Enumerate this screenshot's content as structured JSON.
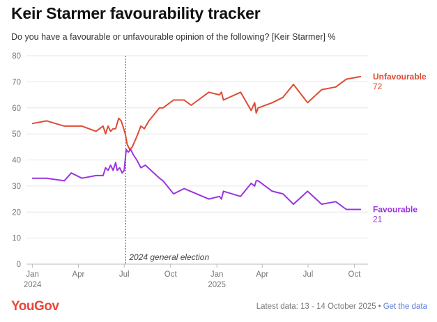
{
  "header": {
    "title": "Keir Starmer favourability tracker",
    "subtitle": "Do you have a favourable or unfavourable opinion of the following? [Keir Starmer] %"
  },
  "footer": {
    "logo": "YouGov",
    "latest": "Latest data: 13 - 14 October 2025",
    "separator": "•",
    "link": "Get the data"
  },
  "colors": {
    "unfavourable": "#e04a33",
    "favourable": "#9b34e0",
    "grid": "#e6e6e6",
    "ink": "#777777"
  },
  "chart_data": {
    "type": "line",
    "title": "Keir Starmer favourability tracker",
    "ylim": [
      0,
      80
    ],
    "yticks": [
      0,
      10,
      20,
      30,
      40,
      50,
      60,
      70,
      80
    ],
    "xlim": [
      "2023-12-20",
      "2025-10-28"
    ],
    "grid": true,
    "legend": "end-of-line labels",
    "xticks": [
      {
        "date": "2024-01-01",
        "label": "Jan",
        "year": "2024"
      },
      {
        "date": "2024-04-01",
        "label": "Apr",
        "year": ""
      },
      {
        "date": "2024-07-01",
        "label": "Jul",
        "year": ""
      },
      {
        "date": "2024-10-01",
        "label": "Oct",
        "year": ""
      },
      {
        "date": "2025-01-01",
        "label": "Jan",
        "year": "2025"
      },
      {
        "date": "2025-04-01",
        "label": "Apr",
        "year": ""
      },
      {
        "date": "2025-07-01",
        "label": "Jul",
        "year": ""
      },
      {
        "date": "2025-10-01",
        "label": "Oct",
        "year": ""
      }
    ],
    "annotations": [
      {
        "date": "2024-07-04",
        "label": "2024 general election"
      }
    ],
    "series": [
      {
        "name": "Unfavourable",
        "end_value": "72",
        "points": [
          [
            "2024-01-01",
            54
          ],
          [
            "2024-01-29",
            55
          ],
          [
            "2024-03-04",
            53
          ],
          [
            "2024-04-08",
            53
          ],
          [
            "2024-05-06",
            51
          ],
          [
            "2024-05-20",
            53
          ],
          [
            "2024-05-25",
            50
          ],
          [
            "2024-05-30",
            53
          ],
          [
            "2024-06-04",
            51
          ],
          [
            "2024-06-09",
            52
          ],
          [
            "2024-06-14",
            52
          ],
          [
            "2024-06-20",
            56
          ],
          [
            "2024-06-25",
            55
          ],
          [
            "2024-06-30",
            52
          ],
          [
            "2024-07-03",
            50
          ],
          [
            "2024-07-07",
            46
          ],
          [
            "2024-07-12",
            44
          ],
          [
            "2024-07-17",
            45
          ],
          [
            "2024-07-26",
            49
          ],
          [
            "2024-08-03",
            53
          ],
          [
            "2024-08-10",
            52
          ],
          [
            "2024-08-19",
            55
          ],
          [
            "2024-09-09",
            60
          ],
          [
            "2024-09-16",
            60
          ],
          [
            "2024-10-07",
            63
          ],
          [
            "2024-10-28",
            63
          ],
          [
            "2024-11-11",
            61
          ],
          [
            "2024-12-16",
            66
          ],
          [
            "2025-01-06",
            65
          ],
          [
            "2025-01-10",
            66
          ],
          [
            "2025-01-14",
            63
          ],
          [
            "2025-02-17",
            66
          ],
          [
            "2025-03-10",
            59
          ],
          [
            "2025-03-17",
            62
          ],
          [
            "2025-03-20",
            58
          ],
          [
            "2025-03-24",
            60
          ],
          [
            "2025-04-21",
            62
          ],
          [
            "2025-05-12",
            64
          ],
          [
            "2025-06-02",
            69
          ],
          [
            "2025-06-30",
            62
          ],
          [
            "2025-07-28",
            67
          ],
          [
            "2025-08-25",
            68
          ],
          [
            "2025-09-15",
            71
          ],
          [
            "2025-10-13",
            72
          ]
        ]
      },
      {
        "name": "Favourable",
        "end_value": "21",
        "points": [
          [
            "2024-01-01",
            33
          ],
          [
            "2024-01-29",
            33
          ],
          [
            "2024-03-04",
            32
          ],
          [
            "2024-03-18",
            35
          ],
          [
            "2024-04-08",
            33
          ],
          [
            "2024-05-06",
            34
          ],
          [
            "2024-05-20",
            34
          ],
          [
            "2024-05-25",
            37
          ],
          [
            "2024-05-30",
            36
          ],
          [
            "2024-06-04",
            38
          ],
          [
            "2024-06-09",
            36
          ],
          [
            "2024-06-14",
            39
          ],
          [
            "2024-06-17",
            36
          ],
          [
            "2024-06-22",
            37
          ],
          [
            "2024-06-27",
            35
          ],
          [
            "2024-07-01",
            36
          ],
          [
            "2024-07-05",
            44
          ],
          [
            "2024-07-09",
            43
          ],
          [
            "2024-07-14",
            44
          ],
          [
            "2024-07-19",
            42
          ],
          [
            "2024-07-26",
            40
          ],
          [
            "2024-08-03",
            37
          ],
          [
            "2024-08-12",
            38
          ],
          [
            "2024-09-09",
            33
          ],
          [
            "2024-09-16",
            32
          ],
          [
            "2024-10-07",
            27
          ],
          [
            "2024-10-28",
            29
          ],
          [
            "2024-12-16",
            25
          ],
          [
            "2025-01-06",
            26
          ],
          [
            "2025-01-10",
            25
          ],
          [
            "2025-01-14",
            28
          ],
          [
            "2025-02-17",
            26
          ],
          [
            "2025-03-10",
            31
          ],
          [
            "2025-03-17",
            30
          ],
          [
            "2025-03-20",
            32
          ],
          [
            "2025-03-24",
            32
          ],
          [
            "2025-04-21",
            28
          ],
          [
            "2025-05-12",
            27
          ],
          [
            "2025-06-02",
            23
          ],
          [
            "2025-06-30",
            28
          ],
          [
            "2025-07-28",
            23
          ],
          [
            "2025-08-25",
            24
          ],
          [
            "2025-09-15",
            21
          ],
          [
            "2025-10-13",
            21
          ]
        ]
      }
    ]
  }
}
